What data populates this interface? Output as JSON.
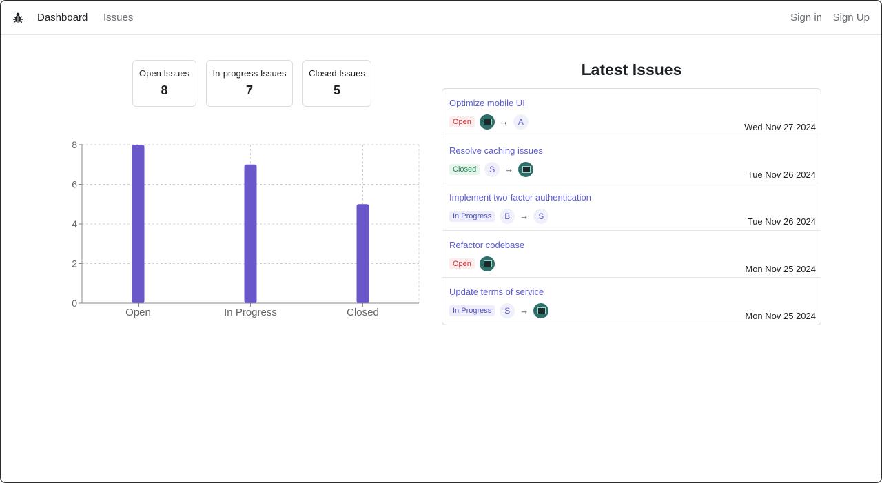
{
  "nav": {
    "logo_icon": "bug-icon",
    "dashboard": "Dashboard",
    "issues": "Issues",
    "sign_in": "Sign in",
    "sign_up": "Sign Up"
  },
  "stats": [
    {
      "label": "Open Issues",
      "value": "8"
    },
    {
      "label": "In-progress Issues",
      "value": "7"
    },
    {
      "label": "Closed Issues",
      "value": "5"
    }
  ],
  "chart_data": {
    "type": "bar",
    "categories": [
      "Open",
      "In Progress",
      "Closed"
    ],
    "values": [
      8,
      7,
      5
    ],
    "ylim": [
      0,
      8
    ],
    "yticks": [
      0,
      2,
      4,
      6,
      8
    ],
    "grid": true,
    "bar_color": "#6a57c9"
  },
  "latest": {
    "title": "Latest Issues",
    "items": [
      {
        "title": "Optimize mobile UI",
        "status": "Open",
        "status_key": "open",
        "from": "img",
        "to": "A",
        "date": "Wed Nov 27 2024"
      },
      {
        "title": "Resolve caching issues",
        "status": "Closed",
        "status_key": "closed",
        "from": "S",
        "to": "img",
        "date": "Tue Nov 26 2024"
      },
      {
        "title": "Implement two-factor authentication",
        "status": "In Progress",
        "status_key": "progress",
        "from": "B",
        "to": "S",
        "date": "Tue Nov 26 2024"
      },
      {
        "title": "Refactor codebase",
        "status": "Open",
        "status_key": "open",
        "from": "img",
        "to": null,
        "date": "Mon Nov 25 2024"
      },
      {
        "title": "Update terms of service",
        "status": "In Progress",
        "status_key": "progress",
        "from": "S",
        "to": "img",
        "date": "Mon Nov 25 2024"
      }
    ],
    "arrow": "→"
  }
}
